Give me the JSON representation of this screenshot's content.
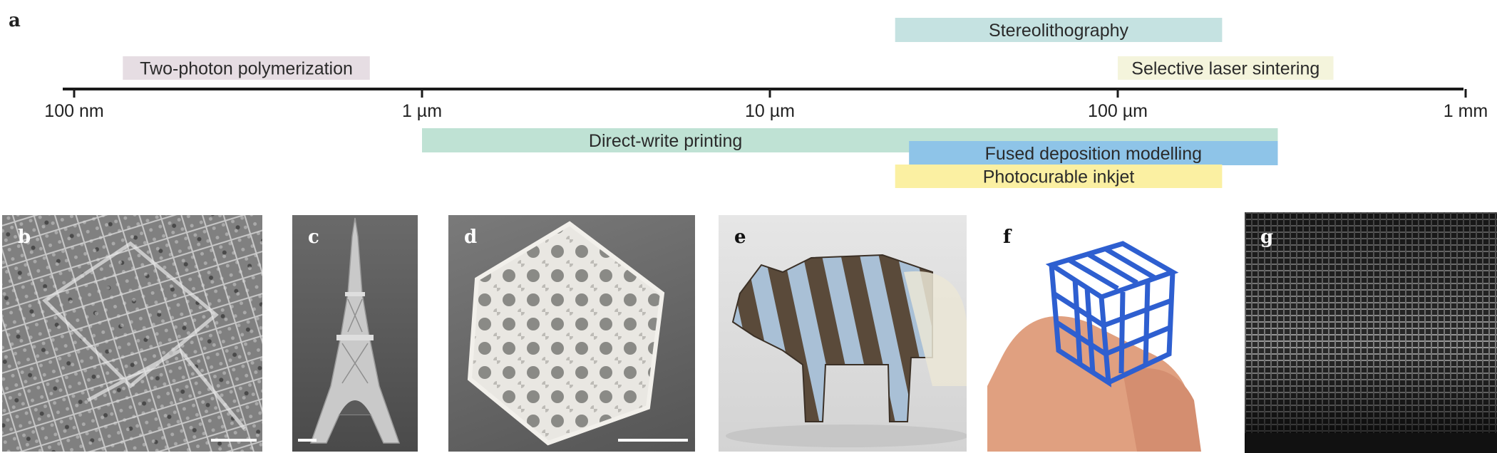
{
  "panels": {
    "a": "a",
    "b": "b",
    "c": "c",
    "d": "d",
    "e": "e",
    "f": "f",
    "g": "g"
  },
  "scale": {
    "ticks": [
      {
        "label": "100 nm",
        "log_m": -7
      },
      {
        "label": "1 µm",
        "log_m": -6
      },
      {
        "label": "10 µm",
        "log_m": -5
      },
      {
        "label": "100 µm",
        "log_m": -4
      },
      {
        "label": "1 mm",
        "log_m": -3
      }
    ]
  },
  "techniques": [
    {
      "name": "Two-photon polymerization",
      "from_log_m": -6.86,
      "to_log_m": -6.15,
      "row": "above-low",
      "color": "#e6dde3"
    },
    {
      "name": "Stereolithography",
      "from_log_m": -4.64,
      "to_log_m": -3.7,
      "row": "above-high",
      "color": "#c5e2e1"
    },
    {
      "name": "Selective laser sintering",
      "from_log_m": -4.0,
      "to_log_m": -3.38,
      "row": "above-low",
      "color": "#f4f4dc"
    },
    {
      "name": "Direct-write printing",
      "from_log_m": -6.0,
      "to_log_m": -3.54,
      "row": "below-1",
      "color": "#bfe2d4"
    },
    {
      "name": "Fused deposition modelling",
      "from_log_m": -4.6,
      "to_log_m": -3.54,
      "row": "below-2",
      "color": "#8ec4e8"
    },
    {
      "name": "Photocurable inkjet",
      "from_log_m": -4.64,
      "to_log_m": -3.7,
      "row": "below-3",
      "color": "#fbf0a2"
    }
  ]
}
